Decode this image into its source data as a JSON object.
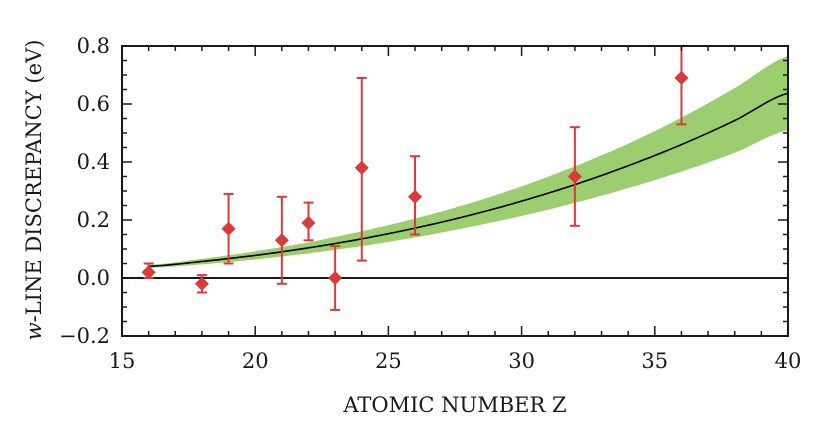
{
  "chart_data": {
    "type": "scatter",
    "xlabel": "ATOMIC NUMBER Z",
    "ylabel_italic": "w",
    "ylabel_rest": "-LINE DISCREPANCY (eV)",
    "xlim": [
      15,
      40
    ],
    "ylim": [
      -0.2,
      0.8
    ],
    "xticks": [
      15,
      20,
      25,
      30,
      35,
      40
    ],
    "xtick_labels": [
      "15",
      "20",
      "25",
      "30",
      "35",
      "40"
    ],
    "yticks": [
      -0.2,
      0.0,
      0.2,
      0.4,
      0.6,
      0.8
    ],
    "ytick_labels": [
      "−0.2",
      "0.0",
      "0.2",
      "0.4",
      "0.6",
      "0.8"
    ],
    "grid": false,
    "zero_line": true,
    "colors": {
      "points": "#d93a3a",
      "band": "#9ccd6e",
      "curve": "#000000",
      "axes": "#1a1a1a"
    },
    "points": [
      {
        "x": 16,
        "y": 0.02,
        "ylo": 0.0,
        "yhi": 0.05
      },
      {
        "x": 18,
        "y": -0.02,
        "ylo": -0.05,
        "yhi": 0.01
      },
      {
        "x": 19,
        "y": 0.17,
        "ylo": 0.05,
        "yhi": 0.29
      },
      {
        "x": 21,
        "y": 0.13,
        "ylo": -0.02,
        "yhi": 0.28
      },
      {
        "x": 22,
        "y": 0.19,
        "ylo": 0.13,
        "yhi": 0.26
      },
      {
        "x": 23,
        "y": 0.0,
        "ylo": -0.11,
        "yhi": 0.11
      },
      {
        "x": 24,
        "y": 0.38,
        "ylo": 0.06,
        "yhi": 0.69
      },
      {
        "x": 26,
        "y": 0.28,
        "ylo": 0.15,
        "yhi": 0.42
      },
      {
        "x": 32,
        "y": 0.35,
        "ylo": 0.18,
        "yhi": 0.52
      },
      {
        "x": 36,
        "y": 0.69,
        "ylo": 0.53,
        "yhi": 0.8
      }
    ],
    "fit_curve": {
      "x": [
        16,
        18,
        20,
        22,
        24,
        26,
        28,
        30,
        32,
        34,
        36,
        38,
        40
      ],
      "y": [
        0.04,
        0.057,
        0.078,
        0.104,
        0.135,
        0.172,
        0.215,
        0.265,
        0.322,
        0.387,
        0.46,
        0.543,
        0.637
      ],
      "band_lo": [
        0.035,
        0.047,
        0.064,
        0.085,
        0.11,
        0.14,
        0.175,
        0.214,
        0.259,
        0.31,
        0.367,
        0.432,
        0.51
      ],
      "band_hi": [
        0.045,
        0.066,
        0.092,
        0.123,
        0.161,
        0.205,
        0.256,
        0.316,
        0.385,
        0.463,
        0.553,
        0.655,
        0.765
      ]
    }
  }
}
